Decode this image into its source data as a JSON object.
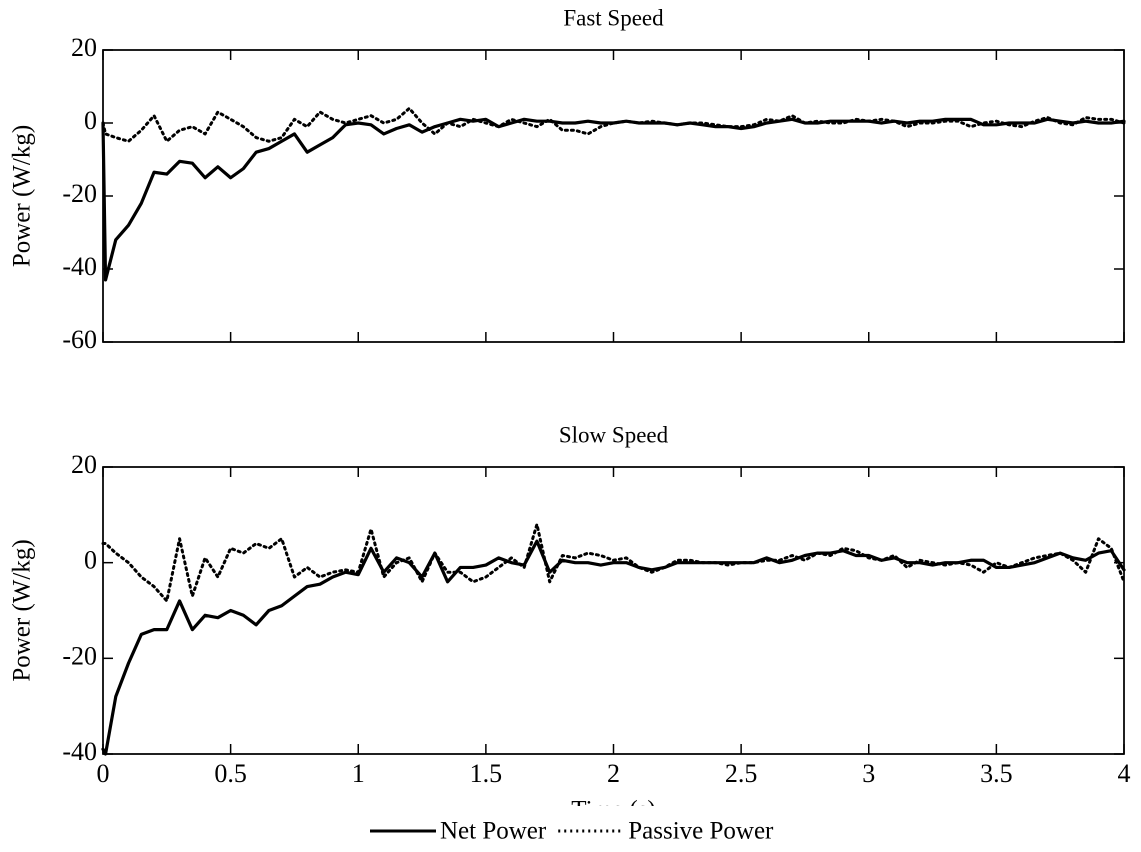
{
  "chart_data": [
    {
      "type": "line",
      "title": "Fast Speed",
      "ylabel": "Power (W/kg)",
      "x": [
        0,
        0.01,
        0.05,
        0.1,
        0.15,
        0.2,
        0.25,
        0.3,
        0.35,
        0.4,
        0.45,
        0.5,
        0.55,
        0.6,
        0.65,
        0.7,
        0.75,
        0.8,
        0.85,
        0.9,
        0.95,
        1.0,
        1.05,
        1.1,
        1.15,
        1.2,
        1.25,
        1.3,
        1.35,
        1.4,
        1.45,
        1.5,
        1.55,
        1.6,
        1.65,
        1.7,
        1.75,
        1.8,
        1.85,
        1.9,
        1.95,
        2.0,
        2.05,
        2.1,
        2.15,
        2.2,
        2.25,
        2.3,
        2.35,
        2.4,
        2.45,
        2.5,
        2.55,
        2.6,
        2.65,
        2.7,
        2.75,
        2.8,
        2.85,
        2.9,
        2.95,
        3.0,
        3.05,
        3.1,
        3.15,
        3.2,
        3.25,
        3.3,
        3.35,
        3.4,
        3.45,
        3.5,
        3.55,
        3.6,
        3.65,
        3.7,
        3.75,
        3.8,
        3.85,
        3.9,
        3.95,
        4.0
      ],
      "series": [
        {
          "name": "Net Power",
          "color": "#000000",
          "line_style": "solid",
          "values": [
            0,
            -43,
            -32,
            -28,
            -22,
            -13.5,
            -14,
            -10.5,
            -11,
            -15,
            -12,
            -15,
            -12.5,
            -8,
            -7,
            -5,
            -3,
            -8,
            -6,
            -4,
            -0.5,
            0,
            -0.5,
            -3,
            -1.5,
            -0.5,
            -2.5,
            -1,
            0,
            1,
            0.5,
            1,
            -1,
            0,
            1,
            0.5,
            0.5,
            0,
            0,
            0.5,
            0,
            0,
            0.5,
            0,
            0,
            0,
            -0.5,
            0,
            -0.5,
            -1,
            -1,
            -1.5,
            -1,
            0,
            0.5,
            1,
            0,
            0,
            0.5,
            0.5,
            0.5,
            0.5,
            0,
            0.5,
            0,
            0.5,
            0.5,
            1,
            1,
            1,
            -0.5,
            -0.5,
            0,
            0,
            0,
            1,
            0.5,
            0,
            0.5,
            0,
            0,
            0.5
          ]
        },
        {
          "name": "Passive Power",
          "color": "#000000",
          "line_style": "dotted",
          "values": [
            0,
            -3,
            -4,
            -5,
            -2,
            2,
            -5,
            -2,
            -1,
            -3,
            3,
            1,
            -1,
            -4,
            -5,
            -4,
            1,
            -1,
            3,
            1,
            0,
            1,
            2,
            0,
            1,
            4,
            0,
            -3,
            0,
            -1,
            1,
            0,
            -1,
            1,
            0,
            -1,
            1,
            -2,
            -2,
            -3,
            -1,
            0,
            0.5,
            0,
            0.5,
            0,
            -0.5,
            0,
            0,
            -0.5,
            -1,
            -1,
            -0.5,
            1,
            0.5,
            2,
            0,
            0.5,
            0,
            0,
            1,
            0.5,
            1,
            0.5,
            -1,
            0,
            0,
            0.5,
            0.5,
            -1,
            0,
            0.5,
            -0.5,
            -1,
            0.5,
            1.5,
            0,
            -0.5,
            1.5,
            1,
            1,
            0
          ]
        }
      ],
      "xlim": [
        0,
        4
      ],
      "xticks": [
        0,
        0.5,
        1,
        1.5,
        2,
        2.5,
        3,
        3.5,
        4
      ],
      "ylim": [
        -60,
        20
      ],
      "yticks": [
        20,
        0,
        -20,
        -40,
        -60
      ]
    },
    {
      "type": "line",
      "title": "Slow Speed",
      "ylabel": "Power (W/kg)",
      "xlabel": "Time (s)",
      "x": [
        0,
        0.01,
        0.05,
        0.1,
        0.15,
        0.2,
        0.25,
        0.3,
        0.35,
        0.4,
        0.45,
        0.5,
        0.55,
        0.6,
        0.65,
        0.7,
        0.75,
        0.8,
        0.85,
        0.9,
        0.95,
        1.0,
        1.05,
        1.1,
        1.15,
        1.2,
        1.25,
        1.3,
        1.35,
        1.4,
        1.45,
        1.5,
        1.55,
        1.6,
        1.65,
        1.7,
        1.75,
        1.8,
        1.85,
        1.9,
        1.95,
        2.0,
        2.05,
        2.1,
        2.15,
        2.2,
        2.25,
        2.3,
        2.35,
        2.4,
        2.45,
        2.5,
        2.55,
        2.6,
        2.65,
        2.7,
        2.75,
        2.8,
        2.85,
        2.9,
        2.95,
        3.0,
        3.05,
        3.1,
        3.15,
        3.2,
        3.25,
        3.3,
        3.35,
        3.4,
        3.45,
        3.5,
        3.55,
        3.6,
        3.65,
        3.7,
        3.75,
        3.8,
        3.85,
        3.9,
        3.95,
        4.0
      ],
      "series": [
        {
          "name": "Net Power",
          "color": "#000000",
          "line_style": "solid",
          "values": [
            -39,
            -40,
            -28,
            -21,
            -15,
            -14,
            -14,
            -8,
            -14,
            -11,
            -11.5,
            -10,
            -11,
            -13,
            -10,
            -9,
            -7,
            -5,
            -4.5,
            -3,
            -2,
            -2.5,
            3,
            -2,
            1,
            0,
            -3,
            2,
            -4,
            -1,
            -1,
            -0.5,
            1,
            0,
            -0.5,
            4.5,
            -2,
            0.5,
            0,
            0,
            -0.5,
            0,
            0,
            -1,
            -1.5,
            -1,
            0,
            0,
            0,
            0,
            0,
            0,
            0,
            1,
            0,
            0.5,
            1.5,
            2,
            2,
            2.5,
            1.5,
            1.5,
            0.5,
            1,
            0,
            0,
            -0.5,
            0,
            0,
            0.5,
            0.5,
            -1,
            -1,
            -0.5,
            0,
            1,
            2,
            1,
            0.5,
            2,
            2.5,
            -1.5
          ]
        },
        {
          "name": "Passive Power",
          "color": "#000000",
          "line_style": "dotted",
          "values": [
            4,
            4,
            2,
            0,
            -3,
            -5,
            -8,
            5,
            -7,
            1,
            -3,
            3,
            2,
            4,
            3,
            5,
            -3,
            -1,
            -3,
            -2,
            -1.5,
            -2,
            7,
            -3,
            0,
            1,
            -4,
            2,
            -2,
            -2,
            -4,
            -3,
            -1,
            1,
            -1,
            8,
            -4,
            1.5,
            1,
            2,
            1.5,
            0.5,
            1,
            -1,
            -2,
            -1,
            0.5,
            0.5,
            0,
            0,
            -0.5,
            0,
            0,
            0.5,
            0.5,
            1.5,
            0.5,
            2,
            1.5,
            3,
            2.5,
            1,
            0.5,
            1.5,
            -1,
            0.5,
            0,
            -0.5,
            0,
            -0.5,
            -2,
            0,
            -1,
            0,
            1,
            1.5,
            2,
            0.5,
            -2,
            5,
            3,
            -4
          ]
        }
      ],
      "xlim": [
        0,
        4
      ],
      "xticks": [
        0,
        0.5,
        1,
        1.5,
        2,
        2.5,
        3,
        3.5,
        4
      ],
      "ylim": [
        -40,
        20
      ],
      "yticks": [
        20,
        0,
        -20,
        -40
      ],
      "legend": "bottom"
    }
  ]
}
